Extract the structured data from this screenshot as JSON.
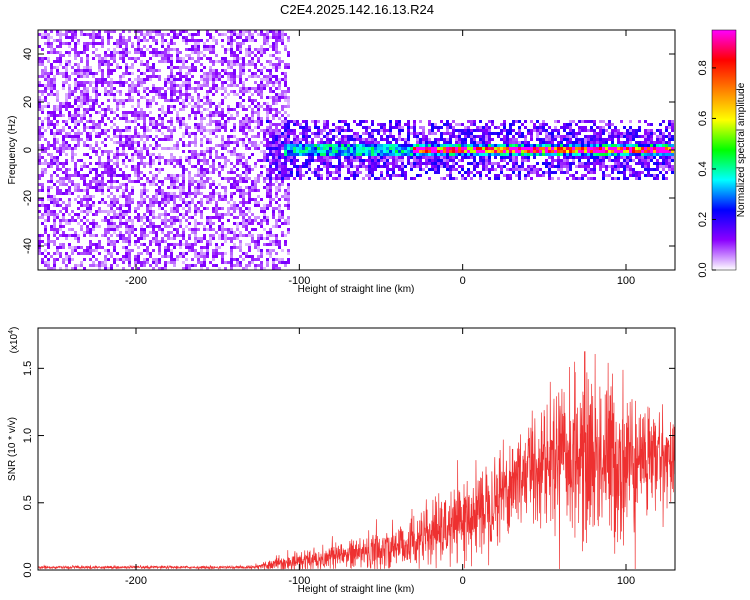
{
  "title": "C2E4.2025.142.16.13.R24",
  "chart_data": [
    {
      "type": "heatmap",
      "xlabel": "Height of straight line (km)",
      "ylabel": "Frequency (Hz)",
      "xlim": [
        -260,
        130
      ],
      "ylim": [
        -50,
        50
      ],
      "xticks": [
        -200,
        -100,
        0,
        100
      ],
      "yticks": [
        -40,
        -20,
        0,
        20,
        40
      ],
      "colorbar": {
        "label": "Normalized spectral amplitude",
        "range": [
          0.0,
          0.95
        ],
        "ticks": [
          "0.0",
          "0.2",
          "0.4",
          "0.6",
          "0.8"
        ],
        "colormap": [
          "#ffffff",
          "#8b00ff",
          "#0000ff",
          "#00ffff",
          "#00ff00",
          "#ffff00",
          "#ff8000",
          "#ff0000",
          "#ff00ff"
        ]
      },
      "regions": [
        {
          "x_range": [
            -260,
            -105
          ],
          "y_range": [
            -50,
            50
          ],
          "amplitude": 0.05,
          "description_level": "noise"
        },
        {
          "x_range": [
            -120,
            130
          ],
          "y_range": [
            -12,
            12
          ],
          "amplitude": 0.1
        },
        {
          "x_range": [
            -110,
            130
          ],
          "y_range": [
            -3,
            3
          ],
          "amplitude": 0.35
        },
        {
          "x_range": [
            -30,
            130
          ],
          "y_range": [
            -1,
            1
          ],
          "amplitude": 0.9
        }
      ]
    },
    {
      "type": "line",
      "xlabel": "Height of straight line (km)",
      "ylabel": "SNR (10 * v/v)",
      "exponent_label": "(x10",
      "exponent_sup": "4",
      "exponent_close": ")",
      "xlim": [
        -260,
        130
      ],
      "ylim": [
        0,
        1.8
      ],
      "xticks": [
        -200,
        -100,
        0,
        100
      ],
      "yticks": [
        "0.0",
        "0.5",
        "1.0",
        "1.5"
      ],
      "series": [
        {
          "color": "#ee3030",
          "envelope": [
            {
              "x": -260,
              "mean": 0.02,
              "amp": 0.01
            },
            {
              "x": -130,
              "mean": 0.02,
              "amp": 0.01
            },
            {
              "x": -110,
              "mean": 0.05,
              "amp": 0.06
            },
            {
              "x": -80,
              "mean": 0.1,
              "amp": 0.12
            },
            {
              "x": -50,
              "mean": 0.15,
              "amp": 0.16
            },
            {
              "x": -20,
              "mean": 0.25,
              "amp": 0.22
            },
            {
              "x": 0,
              "mean": 0.35,
              "amp": 0.28
            },
            {
              "x": 20,
              "mean": 0.55,
              "amp": 0.35
            },
            {
              "x": 40,
              "mean": 0.75,
              "amp": 0.4
            },
            {
              "x": 60,
              "mean": 0.85,
              "amp": 0.5
            },
            {
              "x": 80,
              "mean": 0.85,
              "amp": 0.7
            },
            {
              "x": 100,
              "mean": 0.8,
              "amp": 0.6
            },
            {
              "x": 130,
              "mean": 0.85,
              "amp": 0.25
            }
          ]
        }
      ]
    }
  ]
}
